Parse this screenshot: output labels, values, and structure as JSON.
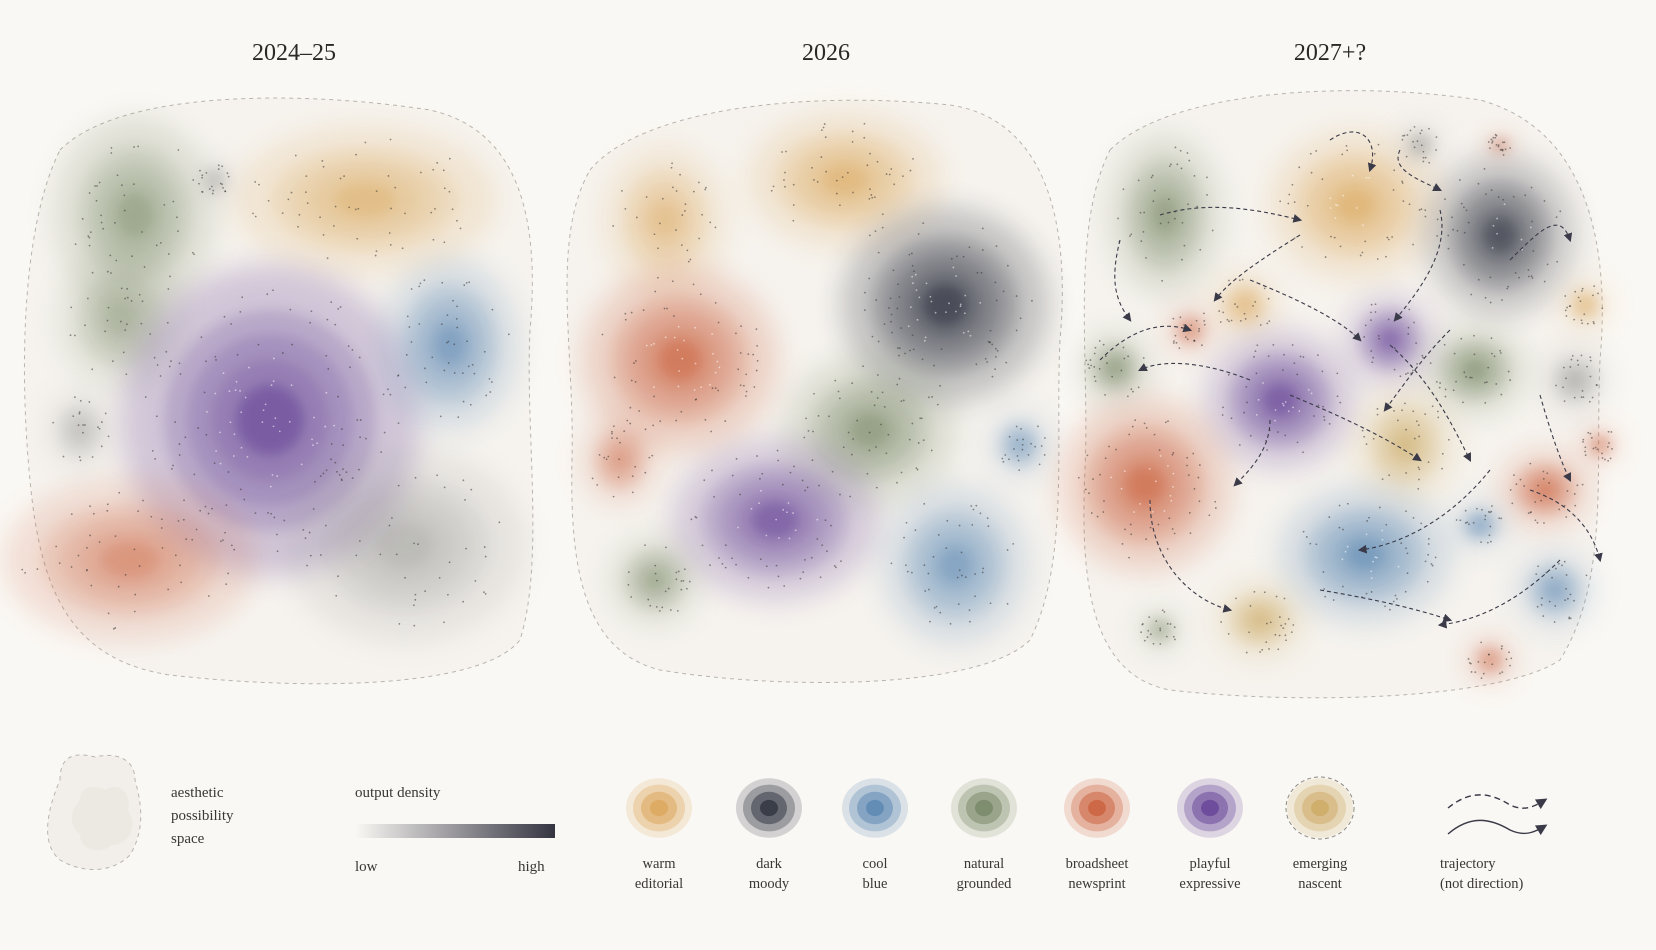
{
  "panels": [
    {
      "title": "2024–25"
    },
    {
      "title": "2026"
    },
    {
      "title": "2027+?"
    }
  ],
  "legend": {
    "space": {
      "line1": "aesthetic",
      "line2": "possibility",
      "line3": "space"
    },
    "density": {
      "title": "output density",
      "low": "low",
      "high": "high"
    },
    "categories": [
      {
        "id": "warm",
        "line1": "warm",
        "line2": "editorial",
        "color": "#d9a04e"
      },
      {
        "id": "dark",
        "line1": "dark",
        "line2": "moody",
        "color": "#1f2330"
      },
      {
        "id": "cool",
        "line1": "cool",
        "line2": "blue",
        "color": "#4f7fae"
      },
      {
        "id": "natural",
        "line1": "natural",
        "line2": "grounded",
        "color": "#6d7f5a"
      },
      {
        "id": "broadsheet",
        "line1": "broadsheet",
        "line2": "newsprint",
        "color": "#c8552f"
      },
      {
        "id": "playful",
        "line1": "playful",
        "line2": "expressive",
        "color": "#5a3590"
      },
      {
        "id": "emerging",
        "line1": "emerging",
        "line2": "nascent",
        "color": "#c9a55a"
      }
    ],
    "trajectory": {
      "line1": "trajectory",
      "line2": "(not direction)"
    }
  }
}
